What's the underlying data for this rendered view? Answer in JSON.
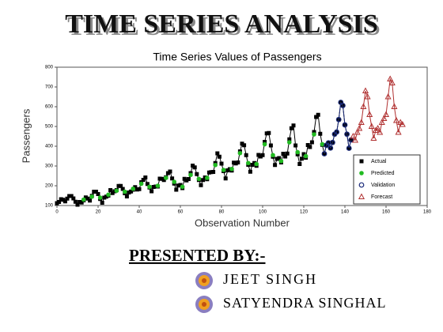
{
  "header": {
    "title": "TIME SERIES ANALYSIS"
  },
  "chart_data": {
    "type": "line",
    "title": "Time Series Values of Passengers",
    "x_label": "Observation Number",
    "y_label": "Passengers",
    "xlim": [
      0,
      180
    ],
    "xticks": [
      0,
      20,
      40,
      60,
      80,
      100,
      120,
      140,
      160,
      180
    ],
    "ylim": [
      100,
      800
    ],
    "yticks": [
      100,
      200,
      300,
      400,
      500,
      600,
      700,
      800
    ],
    "legend": "lower-right",
    "series": [
      {
        "name": "Actual",
        "color": "#000000",
        "marker": "square",
        "line": true,
        "x": [
          0,
          1,
          2,
          3,
          4,
          5,
          6,
          7,
          8,
          9,
          10,
          11,
          12,
          13,
          14,
          15,
          16,
          17,
          18,
          19,
          20,
          21,
          22,
          23,
          24,
          25,
          26,
          27,
          28,
          29,
          30,
          31,
          32,
          33,
          34,
          35,
          36,
          37,
          38,
          39,
          40,
          41,
          42,
          43,
          44,
          45,
          46,
          47,
          48,
          49,
          50,
          51,
          52,
          53,
          54,
          55,
          56,
          57,
          58,
          59,
          60,
          61,
          62,
          63,
          64,
          65,
          66,
          67,
          68,
          69,
          70,
          71,
          72,
          73,
          74,
          75,
          76,
          77,
          78,
          79,
          80,
          81,
          82,
          83,
          84,
          85,
          86,
          87,
          88,
          89,
          90,
          91,
          92,
          93,
          94,
          95,
          96,
          97,
          98,
          99,
          100,
          101,
          102,
          103,
          104,
          105,
          106,
          107,
          108,
          109,
          110,
          111,
          112,
          113,
          114,
          115,
          116,
          117,
          118,
          119,
          120,
          121,
          122,
          123,
          124,
          125,
          126,
          127,
          128,
          129,
          130,
          131,
          132,
          133,
          134,
          135,
          136,
          137,
          138,
          139,
          140,
          141,
          142,
          143
        ],
        "values": [
          112,
          118,
          132,
          129,
          121,
          135,
          148,
          148,
          136,
          119,
          104,
          118,
          115,
          126,
          141,
          135,
          125,
          149,
          170,
          170,
          158,
          133,
          114,
          140,
          145,
          150,
          178,
          163,
          172,
          178,
          199,
          199,
          184,
          162,
          146,
          166,
          171,
          180,
          193,
          181,
          183,
          218,
          230,
          242,
          209,
          191,
          172,
          194,
          196,
          196,
          236,
          235,
          229,
          243,
          264,
          272,
          237,
          211,
          180,
          201,
          204,
          188,
          235,
          227,
          234,
          264,
          302,
          293,
          259,
          229,
          203,
          229,
          242,
          233,
          267,
          269,
          270,
          315,
          364,
          347,
          312,
          274,
          237,
          278,
          284,
          277,
          317,
          313,
          318,
          374,
          413,
          405,
          355,
          306,
          271,
          306,
          315,
          301,
          356,
          348,
          355,
          422,
          465,
          467,
          404,
          347,
          305,
          336,
          340,
          318,
          362,
          348,
          363,
          435,
          491,
          505,
          404,
          359,
          310,
          337,
          360,
          342,
          406,
          396,
          420,
          472,
          548,
          559,
          463,
          407,
          362,
          405,
          417,
          391,
          419,
          461,
          472,
          535,
          622,
          606,
          508,
          461,
          390,
          432
        ]
      },
      {
        "name": "Predicted",
        "color": "#22bb22",
        "marker": "dot",
        "line": false,
        "x": [
          13,
          17,
          21,
          25,
          29,
          33,
          37,
          41,
          45,
          49,
          53,
          57,
          61,
          65,
          69,
          73,
          77,
          81,
          85,
          89,
          93,
          97,
          101,
          105,
          109,
          113,
          117,
          121,
          125,
          129
        ],
        "values": [
          130,
          145,
          140,
          155,
          175,
          170,
          185,
          210,
          195,
          200,
          240,
          220,
          195,
          255,
          235,
          240,
          305,
          280,
          285,
          365,
          315,
          310,
          410,
          355,
          325,
          420,
          370,
          350,
          460,
          410
        ]
      },
      {
        "name": "Validation",
        "color": "#1a2a7a",
        "marker": "circle",
        "line": true,
        "x": [
          130,
          131,
          132,
          133,
          134,
          135,
          136,
          137,
          138,
          139,
          140,
          141,
          142,
          143
        ],
        "values": [
          362,
          405,
          417,
          391,
          419,
          461,
          472,
          535,
          622,
          606,
          508,
          461,
          390,
          432
        ]
      },
      {
        "name": "Forecast",
        "color": "#b03030",
        "marker": "triangle",
        "line": true,
        "x": [
          144,
          145,
          146,
          147,
          148,
          149,
          150,
          151,
          152,
          153,
          154,
          155,
          156,
          157,
          158,
          159,
          160,
          161,
          162,
          163,
          164,
          165,
          166,
          167,
          168
        ],
        "values": [
          450,
          430,
          470,
          490,
          520,
          600,
          680,
          650,
          560,
          500,
          440,
          480,
          490,
          470,
          520,
          540,
          560,
          650,
          740,
          720,
          600,
          530,
          470,
          520,
          510
        ]
      }
    ]
  },
  "footer": {
    "label": "PRESENTED BY:-",
    "presenters": [
      "JEET SINGH",
      "SATYENDRA SINGHAL"
    ]
  }
}
